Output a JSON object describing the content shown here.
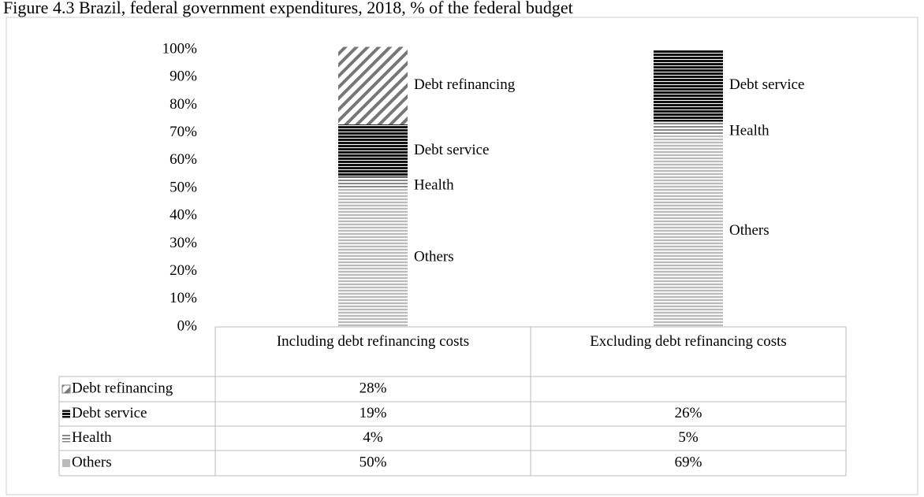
{
  "chart_data": {
    "type": "stacked-bar",
    "title": "Figure 4.3 Brazil, federal government expenditures, 2018, % of the federal budget",
    "categories": [
      "Including debt refinancing costs",
      "Excluding debt refinancing costs"
    ],
    "series": [
      {
        "name": "Debt refinancing",
        "color": "#777777",
        "values": [
          28,
          null
        ],
        "value_labels": [
          "28%",
          null
        ]
      },
      {
        "name": "Debt service",
        "color": "#111111",
        "values": [
          19,
          26
        ],
        "value_labels": [
          "19%",
          "26%"
        ]
      },
      {
        "name": "Health",
        "color": "#888888",
        "values": [
          4,
          5
        ],
        "value_labels": [
          "4%",
          "5%"
        ]
      },
      {
        "name": "Others",
        "color": "#bbbbbb",
        "values": [
          50,
          69
        ],
        "value_labels": [
          "50%",
          "69%"
        ]
      }
    ],
    "ylim": [
      0,
      100
    ],
    "yticks": [
      {
        "value": 0,
        "label": "0%"
      },
      {
        "value": 10,
        "label": "10%"
      },
      {
        "value": 20,
        "label": "20%"
      },
      {
        "value": 30,
        "label": "30%"
      },
      {
        "value": 40,
        "label": "40%"
      },
      {
        "value": 50,
        "label": "50%"
      },
      {
        "value": 60,
        "label": "60%"
      },
      {
        "value": 70,
        "label": "70%"
      },
      {
        "value": 80,
        "label": "80%"
      },
      {
        "value": 90,
        "label": "90%"
      },
      {
        "value": 100,
        "label": "100%"
      }
    ]
  }
}
